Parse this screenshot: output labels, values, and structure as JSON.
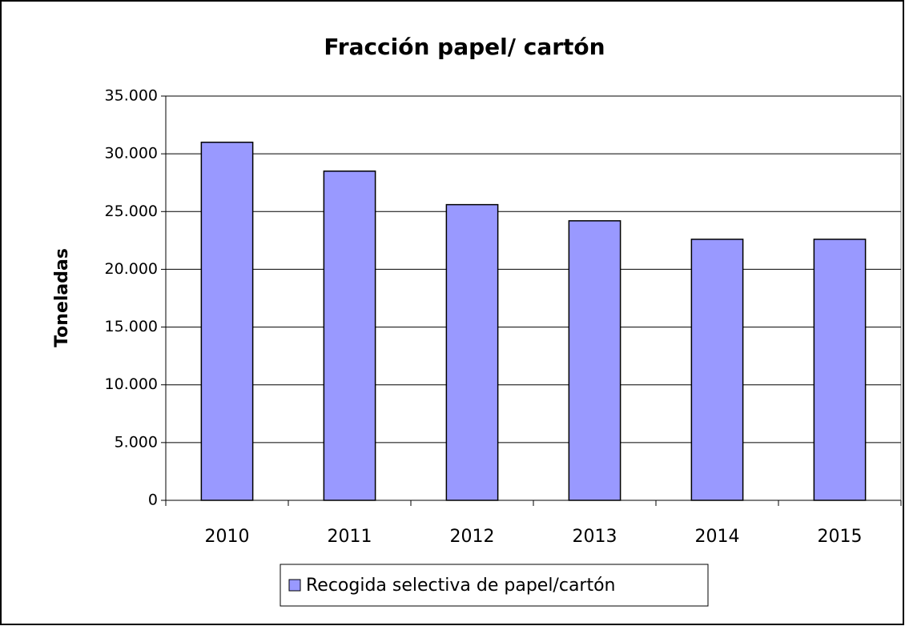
{
  "chart_data": {
    "type": "bar",
    "title": "Fracción papel/ cartón",
    "y_label": "Toneladas",
    "categories": [
      "2010",
      "2011",
      "2012",
      "2013",
      "2014",
      "2015"
    ],
    "series": [
      {
        "name": "Recogida selectiva de papel/cartón",
        "color": "#9999ff",
        "values": [
          31000,
          28500,
          25600,
          24200,
          22600,
          22600
        ]
      }
    ],
    "ylim": [
      0,
      35000
    ],
    "yticks": [
      0,
      {
        "value": 5000,
        "label": "5.000"
      },
      {
        "value": 10000,
        "label": "10.000"
      },
      {
        "value": 15000,
        "label": "15.000"
      },
      {
        "value": 20000,
        "label": "20.000"
      },
      {
        "value": 25000,
        "label": "25.000"
      },
      {
        "value": 30000,
        "label": "30.000"
      },
      {
        "value": 35000,
        "label": "35.000"
      }
    ],
    "grid": true,
    "legend": "bottom"
  }
}
